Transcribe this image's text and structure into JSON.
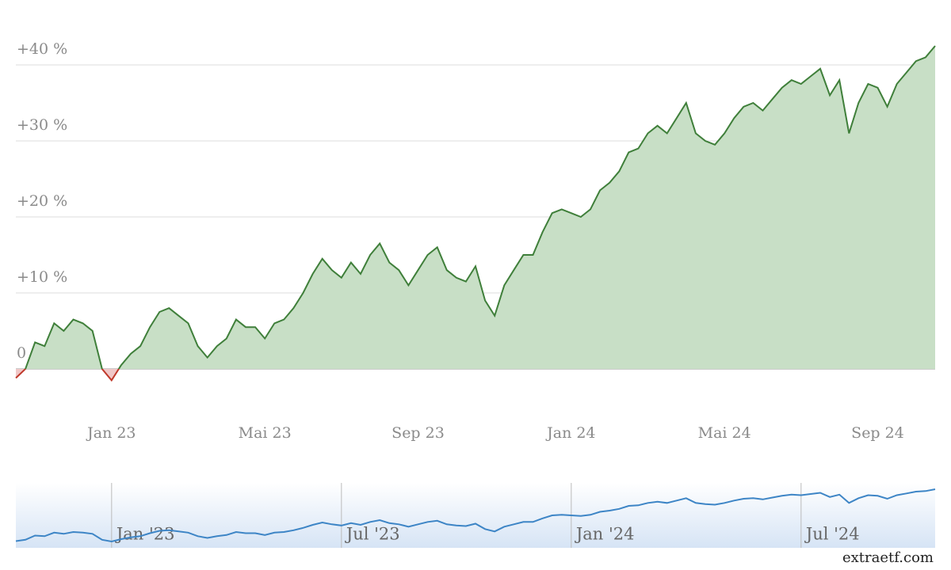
{
  "chart_data": {
    "type": "area",
    "series": [
      {
        "name": null,
        "color": "#3f7f3a",
        "fill": "#c8dfc6",
        "negative_color": "#c0392b",
        "negative_fill": "#f0c8c8",
        "values": [
          -1.2,
          0,
          3.5,
          3,
          6,
          5,
          6.5,
          6,
          5,
          0,
          -1.5,
          0.5,
          2,
          3,
          5.5,
          7.5,
          8,
          7,
          6,
          3,
          1.5,
          3,
          4,
          6.5,
          5.5,
          5.5,
          4,
          6,
          6.5,
          8,
          10,
          12.5,
          14.5,
          13,
          12,
          14,
          12.5,
          15,
          16.5,
          14,
          13,
          11,
          13,
          15,
          16,
          13,
          12,
          11.5,
          13.5,
          9,
          7,
          11,
          13,
          15,
          15,
          18,
          20.5,
          21,
          20.5,
          20,
          21,
          23.5,
          24.5,
          26,
          28.5,
          29,
          31,
          32,
          31,
          33,
          35,
          31,
          30,
          29.5,
          31,
          33,
          34.5,
          35,
          34,
          35.5,
          37,
          38,
          37.5,
          38.5,
          39.5,
          36,
          38,
          31,
          35,
          37.5,
          37,
          34.5,
          37.5,
          39,
          40.5,
          41,
          42.5
        ]
      }
    ],
    "categories": [
      null,
      null,
      null,
      null,
      null,
      null,
      null,
      null,
      null,
      null,
      "Jan 23",
      null,
      null,
      null,
      null,
      null,
      null,
      null,
      null,
      null,
      null,
      null,
      null,
      null,
      null,
      null,
      "Mai 23",
      null,
      null,
      null,
      null,
      null,
      null,
      null,
      null,
      null,
      null,
      null,
      null,
      null,
      null,
      null,
      "Sep 23",
      null,
      null,
      null,
      null,
      null,
      null,
      null,
      null,
      null,
      null,
      null,
      null,
      null,
      null,
      null,
      "Jan 24",
      null,
      null,
      null,
      null,
      null,
      null,
      null,
      null,
      null,
      null,
      null,
      null,
      null,
      null,
      null,
      "Mai 24",
      null,
      null,
      null,
      null,
      null,
      null,
      null,
      null,
      null,
      null,
      null,
      null,
      null,
      null,
      null,
      "Sep 24",
      null,
      null,
      null,
      null,
      null,
      null
    ],
    "ylim": [
      -5,
      45
    ],
    "yticks": [
      {
        "value": 0,
        "label": "0 %"
      },
      {
        "value": 10,
        "label": "+10 %"
      },
      {
        "value": 20,
        "label": "+20 %"
      },
      {
        "value": 30,
        "label": "+30 %"
      },
      {
        "value": 40,
        "label": "+40 %"
      }
    ],
    "grid": true,
    "navigator": {
      "color": "#3d85c6",
      "categories": [
        null,
        null,
        null,
        null,
        null,
        null,
        null,
        null,
        null,
        null,
        "Jan '23",
        null,
        null,
        null,
        null,
        null,
        null,
        null,
        null,
        null,
        null,
        null,
        null,
        null,
        null,
        null,
        null,
        null,
        null,
        null,
        null,
        null,
        null,
        null,
        "Jul '23",
        null,
        null,
        null,
        null,
        null,
        null,
        null,
        null,
        null,
        null,
        null,
        null,
        null,
        null,
        null,
        null,
        null,
        null,
        null,
        null,
        null,
        null,
        null,
        "Jan '24",
        null,
        null,
        null,
        null,
        null,
        null,
        null,
        null,
        null,
        null,
        null,
        null,
        null,
        null,
        null,
        null,
        null,
        null,
        null,
        null,
        null,
        null,
        null,
        "Jul '24",
        null,
        null,
        null,
        null,
        null,
        null,
        null,
        null,
        null,
        null,
        null,
        null,
        null,
        null
      ]
    },
    "credit": "extraetf.com"
  }
}
